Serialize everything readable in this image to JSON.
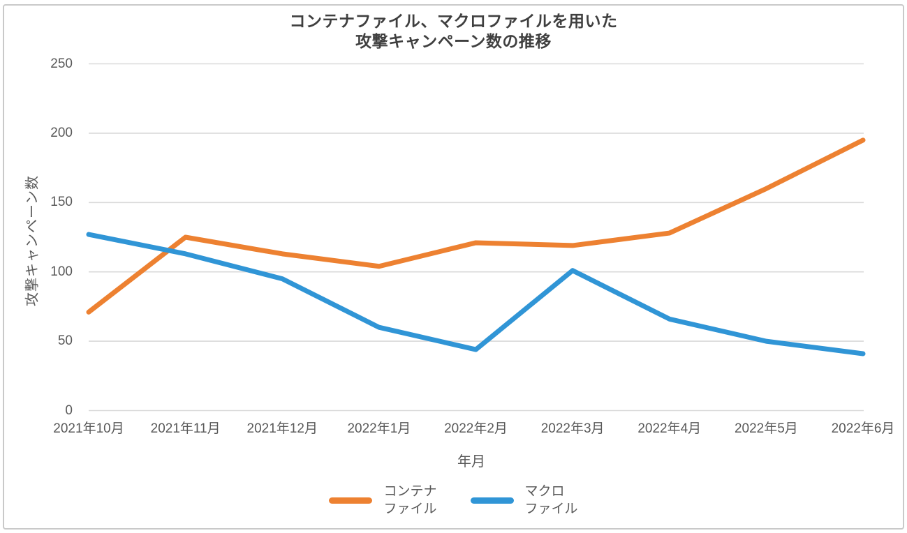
{
  "chart_data": {
    "type": "line",
    "title": "コンテナファイル、マクロファイルを用いた攻撃キャンペーン数の推移",
    "title_lines": [
      "コンテナファイル、マクロファイルを用いた",
      "攻撃キャンペーン数の推移"
    ],
    "xlabel": "年月",
    "ylabel": "攻撃キャンペーン数",
    "categories": [
      "2021年10月",
      "2021年11月",
      "2021年12月",
      "2022年1月",
      "2022年2月",
      "2022年3月",
      "2022年4月",
      "2022年5月",
      "2022年6月"
    ],
    "series": [
      {
        "key": "container-file",
        "name": "コンテナファイル",
        "legend_lines": [
          "コンテナ",
          "ファイル"
        ],
        "color": "#ED8131",
        "values": [
          71,
          125,
          113,
          104,
          121,
          119,
          128,
          160,
          195
        ]
      },
      {
        "key": "macro-file",
        "name": "マクロファイル",
        "legend_lines": [
          "マクロ",
          "ファイル"
        ],
        "color": "#3095D6",
        "values": [
          127,
          113,
          95,
          60,
          44,
          101,
          66,
          50,
          41
        ]
      }
    ],
    "ylim": [
      0,
      250
    ],
    "ytick_step": 50,
    "grid": true,
    "legend_position": "bottom"
  },
  "colors": {
    "grid": "#D9D9D9",
    "axis_text": "#595959",
    "title_text": "#3F3F3F",
    "frame_border": "#C9C9C9"
  }
}
